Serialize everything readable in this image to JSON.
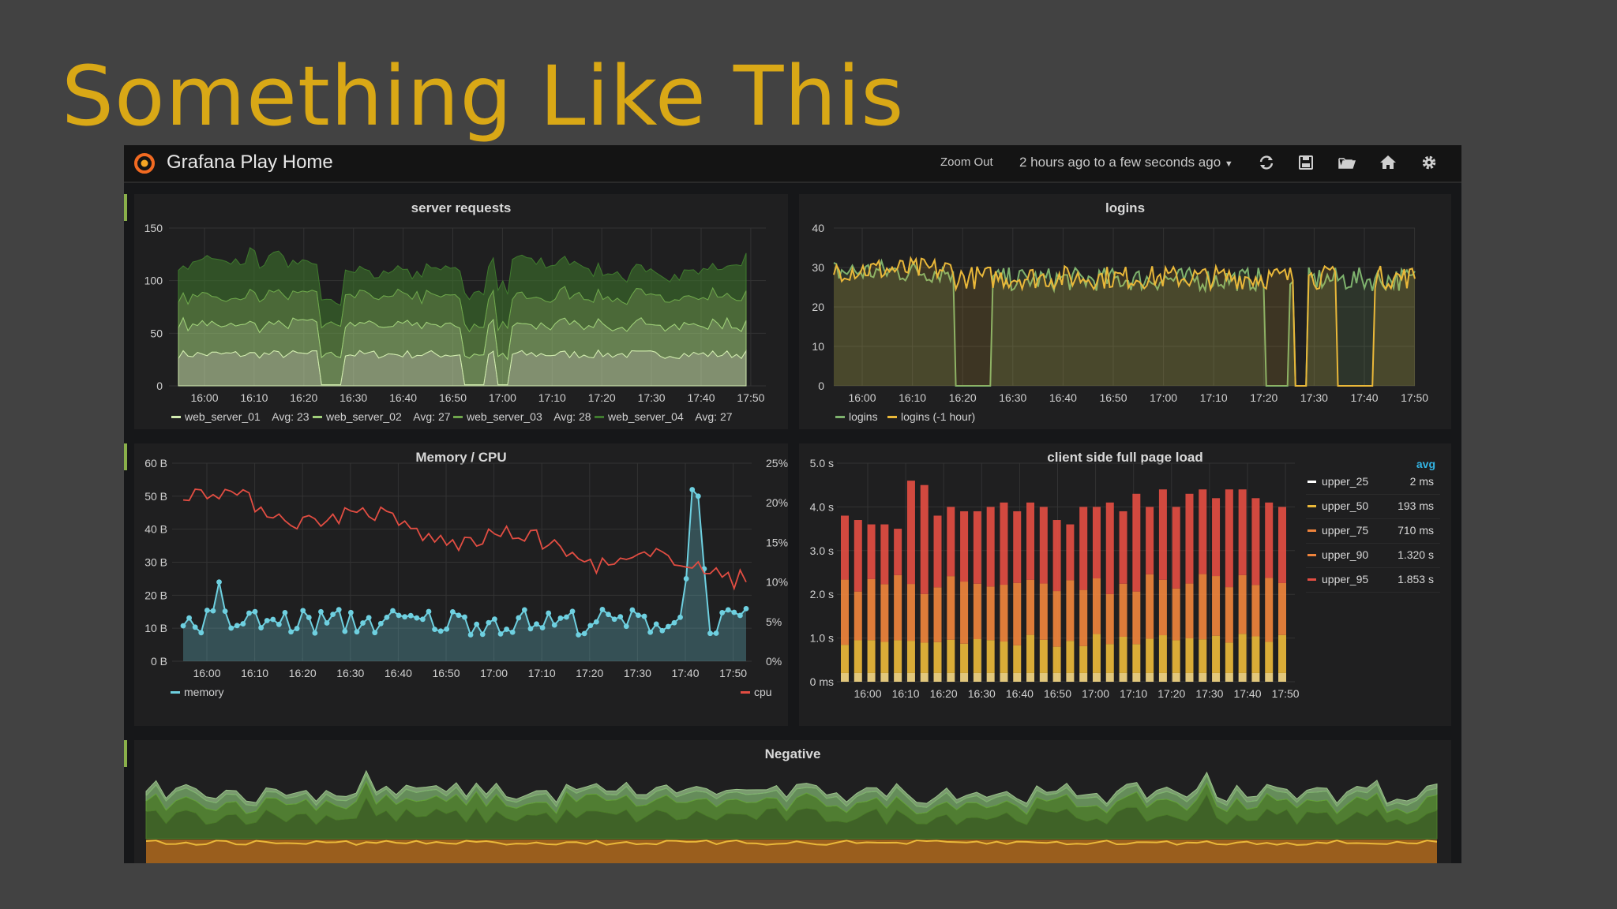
{
  "slide_title": "Something Like This",
  "dashboard": {
    "title": "Grafana Play Home",
    "zoom_label": "Zoom Out",
    "time_range": "2 hours ago to a few seconds ago",
    "icons": [
      "refresh-icon",
      "save-icon",
      "folder-open-icon",
      "home-icon",
      "gear-icon"
    ],
    "grid_color": "#333333",
    "x_ticks": [
      "16:00",
      "16:10",
      "16:20",
      "16:30",
      "16:40",
      "16:50",
      "17:00",
      "17:10",
      "17:20",
      "17:30",
      "17:40",
      "17:50"
    ]
  },
  "panels": {
    "server_requests": {
      "title": "server requests",
      "y_ticks": [
        "0",
        "50",
        "100",
        "150"
      ],
      "legend": [
        {
          "name": "web_server_01",
          "stat": "Avg: 23",
          "color": "#d2ebb0"
        },
        {
          "name": "web_server_02",
          "stat": "Avg: 27",
          "color": "#a0cf7a"
        },
        {
          "name": "web_server_03",
          "stat": "Avg: 28",
          "color": "#6fa64c"
        },
        {
          "name": "web_server_04",
          "stat": "Avg: 27",
          "color": "#3f7a2e"
        }
      ]
    },
    "logins": {
      "title": "logins",
      "y_ticks": [
        "0",
        "10",
        "20",
        "30",
        "40"
      ],
      "legend": [
        {
          "name": "logins",
          "color": "#7eb26d"
        },
        {
          "name": "logins (-1 hour)",
          "color": "#eab839"
        }
      ]
    },
    "memory_cpu": {
      "title": "Memory / CPU",
      "y_ticks_left": [
        "0 B",
        "10 B",
        "20 B",
        "30 B",
        "40 B",
        "50 B",
        "60 B"
      ],
      "y_ticks_right": [
        "0%",
        "5%",
        "10%",
        "15%",
        "20%",
        "25%"
      ],
      "legend_left": {
        "name": "memory",
        "color": "#6ed0e0"
      },
      "legend_right": {
        "name": "cpu",
        "color": "#e24d42"
      }
    },
    "page_load": {
      "title": "client side full page load",
      "y_ticks": [
        "0 ms",
        "1.0 s",
        "2.0 s",
        "3.0 s",
        "4.0 s",
        "5.0 s"
      ],
      "legend_header": "avg",
      "legend": [
        {
          "name": "upper_25",
          "value": "2 ms",
          "color": "#ffffff"
        },
        {
          "name": "upper_50",
          "value": "193 ms",
          "color": "#eab839"
        },
        {
          "name": "upper_75",
          "value": "710 ms",
          "color": "#ef843c"
        },
        {
          "name": "upper_90",
          "value": "1.320 s",
          "color": "#ef843c"
        },
        {
          "name": "upper_95",
          "value": "1.853 s",
          "color": "#e24d42"
        }
      ]
    },
    "negative": {
      "title": "Negative"
    }
  }
}
